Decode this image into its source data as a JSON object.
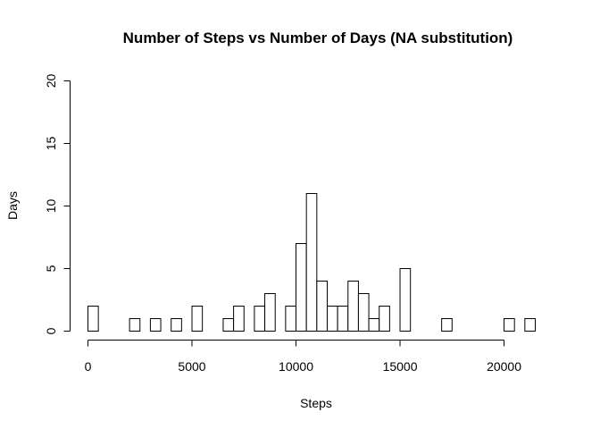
{
  "chart_data": {
    "type": "bar",
    "title": "Number of Steps vs Number of Days (NA substitution)",
    "xlabel": "Steps",
    "ylabel": "Days",
    "xlim": [
      0,
      21500
    ],
    "ylim": [
      0,
      20
    ],
    "x_ticks": [
      0,
      5000,
      10000,
      15000,
      20000
    ],
    "y_ticks": [
      0,
      5,
      10,
      15,
      20
    ],
    "bin_width": 500,
    "bin_starts": [
      0,
      500,
      1000,
      1500,
      2000,
      2500,
      3000,
      3500,
      4000,
      4500,
      5000,
      5500,
      6000,
      6500,
      7000,
      7500,
      8000,
      8500,
      9000,
      9500,
      10000,
      10500,
      11000,
      11500,
      12000,
      12500,
      13000,
      13500,
      14000,
      14500,
      15000,
      15500,
      16000,
      16500,
      17000,
      17500,
      18000,
      18500,
      19000,
      19500,
      20000,
      20500,
      21000
    ],
    "values": [
      2,
      0,
      0,
      0,
      1,
      0,
      1,
      0,
      1,
      0,
      2,
      0,
      0,
      1,
      2,
      0,
      2,
      3,
      0,
      2,
      7,
      11,
      4,
      2,
      2,
      4,
      3,
      1,
      2,
      0,
      5,
      0,
      0,
      0,
      1,
      0,
      0,
      0,
      0,
      0,
      1,
      0,
      1
    ],
    "grid": false,
    "legend": "none"
  }
}
